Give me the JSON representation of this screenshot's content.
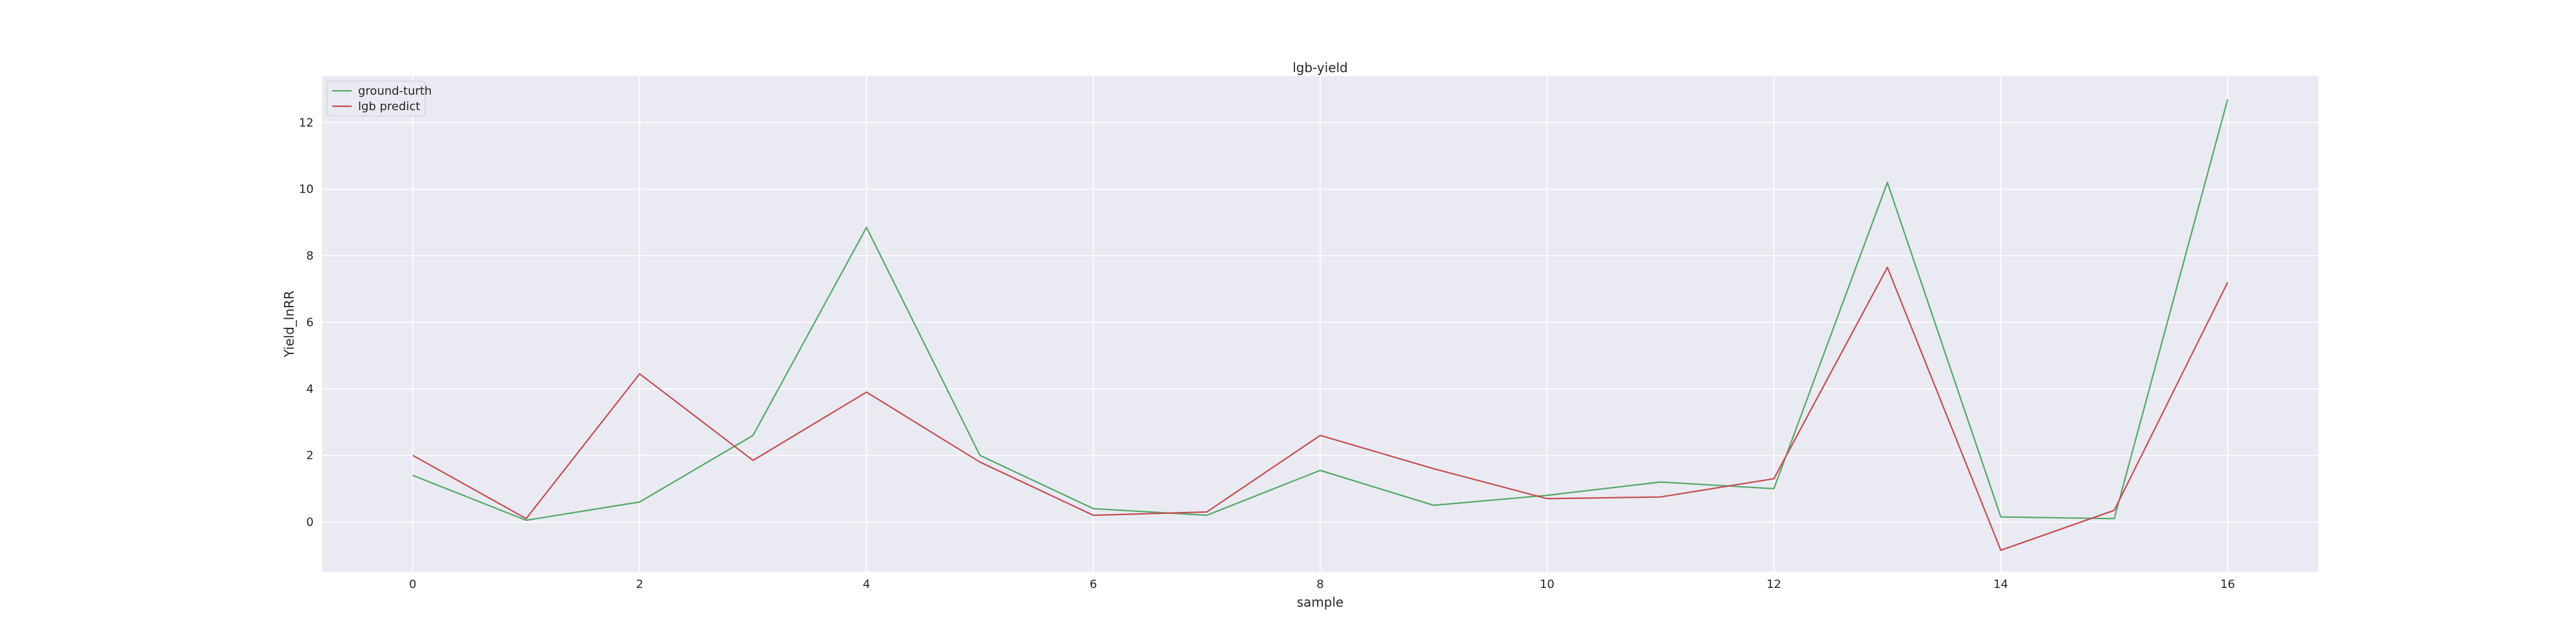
{
  "chart_data": {
    "type": "line",
    "title": "lgb-yield",
    "xlabel": "sample",
    "ylabel": "Yield_lnRR",
    "x": [
      0,
      1,
      2,
      3,
      4,
      5,
      6,
      7,
      8,
      9,
      10,
      11,
      12,
      13,
      14,
      15,
      16
    ],
    "xlim": [
      -0.8,
      16.8
    ],
    "ylim": [
      -1.5,
      13.4
    ],
    "xticks": [
      0,
      2,
      4,
      6,
      8,
      10,
      12,
      14,
      16
    ],
    "yticks": [
      0,
      2,
      4,
      6,
      8,
      10,
      12
    ],
    "xtick_labels": [
      "0",
      "2",
      "4",
      "6",
      "8",
      "10",
      "12",
      "14",
      "16"
    ],
    "ytick_labels": [
      "0",
      "2",
      "4",
      "6",
      "8",
      "10",
      "12"
    ],
    "grid": true,
    "legend_position": "top-left",
    "background_color": "#eaeaf2",
    "series": [
      {
        "name": "ground-turth",
        "color": "#55a868",
        "values": [
          1.4,
          0.05,
          0.6,
          2.6,
          8.85,
          2.0,
          0.4,
          0.2,
          1.55,
          0.5,
          0.8,
          1.2,
          1.0,
          10.2,
          0.15,
          0.1,
          12.7
        ]
      },
      {
        "name": "lgb predict",
        "color": "#c44e52",
        "values": [
          2.0,
          0.1,
          4.45,
          1.85,
          3.9,
          1.8,
          0.2,
          0.3,
          2.6,
          1.6,
          0.7,
          0.75,
          1.3,
          7.65,
          -0.85,
          0.35,
          7.2
        ]
      }
    ]
  }
}
